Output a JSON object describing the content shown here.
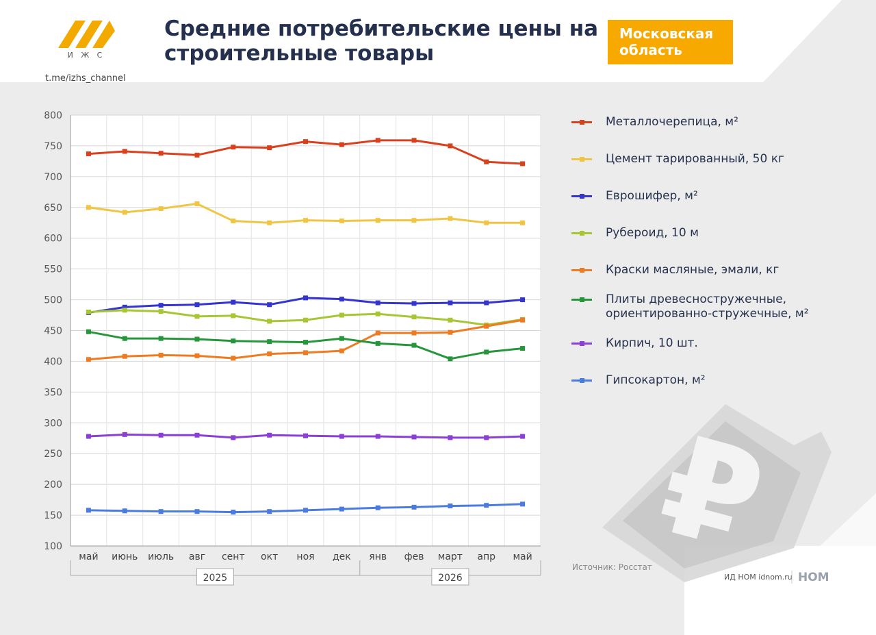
{
  "header": {
    "logo": "И Ж С",
    "channel": "t.me/izhs_channel",
    "title": "Средние потребительские цены на строительные товары",
    "region": "Московская область"
  },
  "source": "Источник: Росстат",
  "footer": {
    "publisher": "ИД НОМ idnom.ru",
    "brand": "НОМ"
  },
  "chart_data": {
    "type": "line",
    "categories": [
      "май",
      "июнь",
      "июль",
      "авг",
      "сент",
      "окт",
      "ноя",
      "дек",
      "янв",
      "фев",
      "март",
      "апр",
      "май"
    ],
    "years": [
      "2025",
      "2026"
    ],
    "ylim": [
      100,
      800
    ],
    "yticks": [
      100,
      150,
      200,
      250,
      300,
      350,
      400,
      450,
      500,
      550,
      600,
      650,
      700,
      750,
      800
    ],
    "grid": true,
    "legend": "right",
    "series": [
      {
        "name": "Металлочерепица, м²",
        "color": "#d9411e",
        "values": [
          737,
          741,
          738,
          735,
          748,
          747,
          757,
          752,
          759,
          759,
          750,
          724,
          721
        ]
      },
      {
        "name": "Цемент тарированный, 50 кг",
        "color": "#f0c544",
        "values": [
          650,
          642,
          648,
          656,
          628,
          625,
          629,
          628,
          629,
          629,
          632,
          625,
          625
        ]
      },
      {
        "name": "Еврошифер, м²",
        "color": "#3434d0",
        "values": [
          479,
          488,
          491,
          492,
          496,
          492,
          503,
          501,
          495,
          494,
          495,
          495,
          500
        ]
      },
      {
        "name": "Рубероид, 10 м",
        "color": "#a6c634",
        "values": [
          480,
          483,
          481,
          473,
          474,
          465,
          467,
          475,
          477,
          472,
          467,
          459,
          468
        ]
      },
      {
        "name": "Краски масляные, эмали, кг",
        "color": "#ee7b22",
        "values": [
          403,
          408,
          410,
          409,
          405,
          412,
          414,
          417,
          446,
          446,
          447,
          457,
          467
        ]
      },
      {
        "name": "Плиты древесностружечные, ориентированно-стружечные, м²",
        "color": "#25963a",
        "values": [
          448,
          437,
          437,
          436,
          433,
          432,
          431,
          437,
          429,
          426,
          404,
          415,
          421
        ]
      },
      {
        "name": "Кирпич, 10 шт.",
        "color": "#8a3fd6",
        "values": [
          278,
          281,
          280,
          280,
          276,
          280,
          279,
          278,
          278,
          277,
          276,
          276,
          278
        ]
      },
      {
        "name": "Гипсокартон, м²",
        "color": "#4a7ce0",
        "values": [
          158,
          157,
          156,
          156,
          155,
          156,
          158,
          160,
          162,
          163,
          165,
          166,
          168
        ]
      }
    ]
  }
}
